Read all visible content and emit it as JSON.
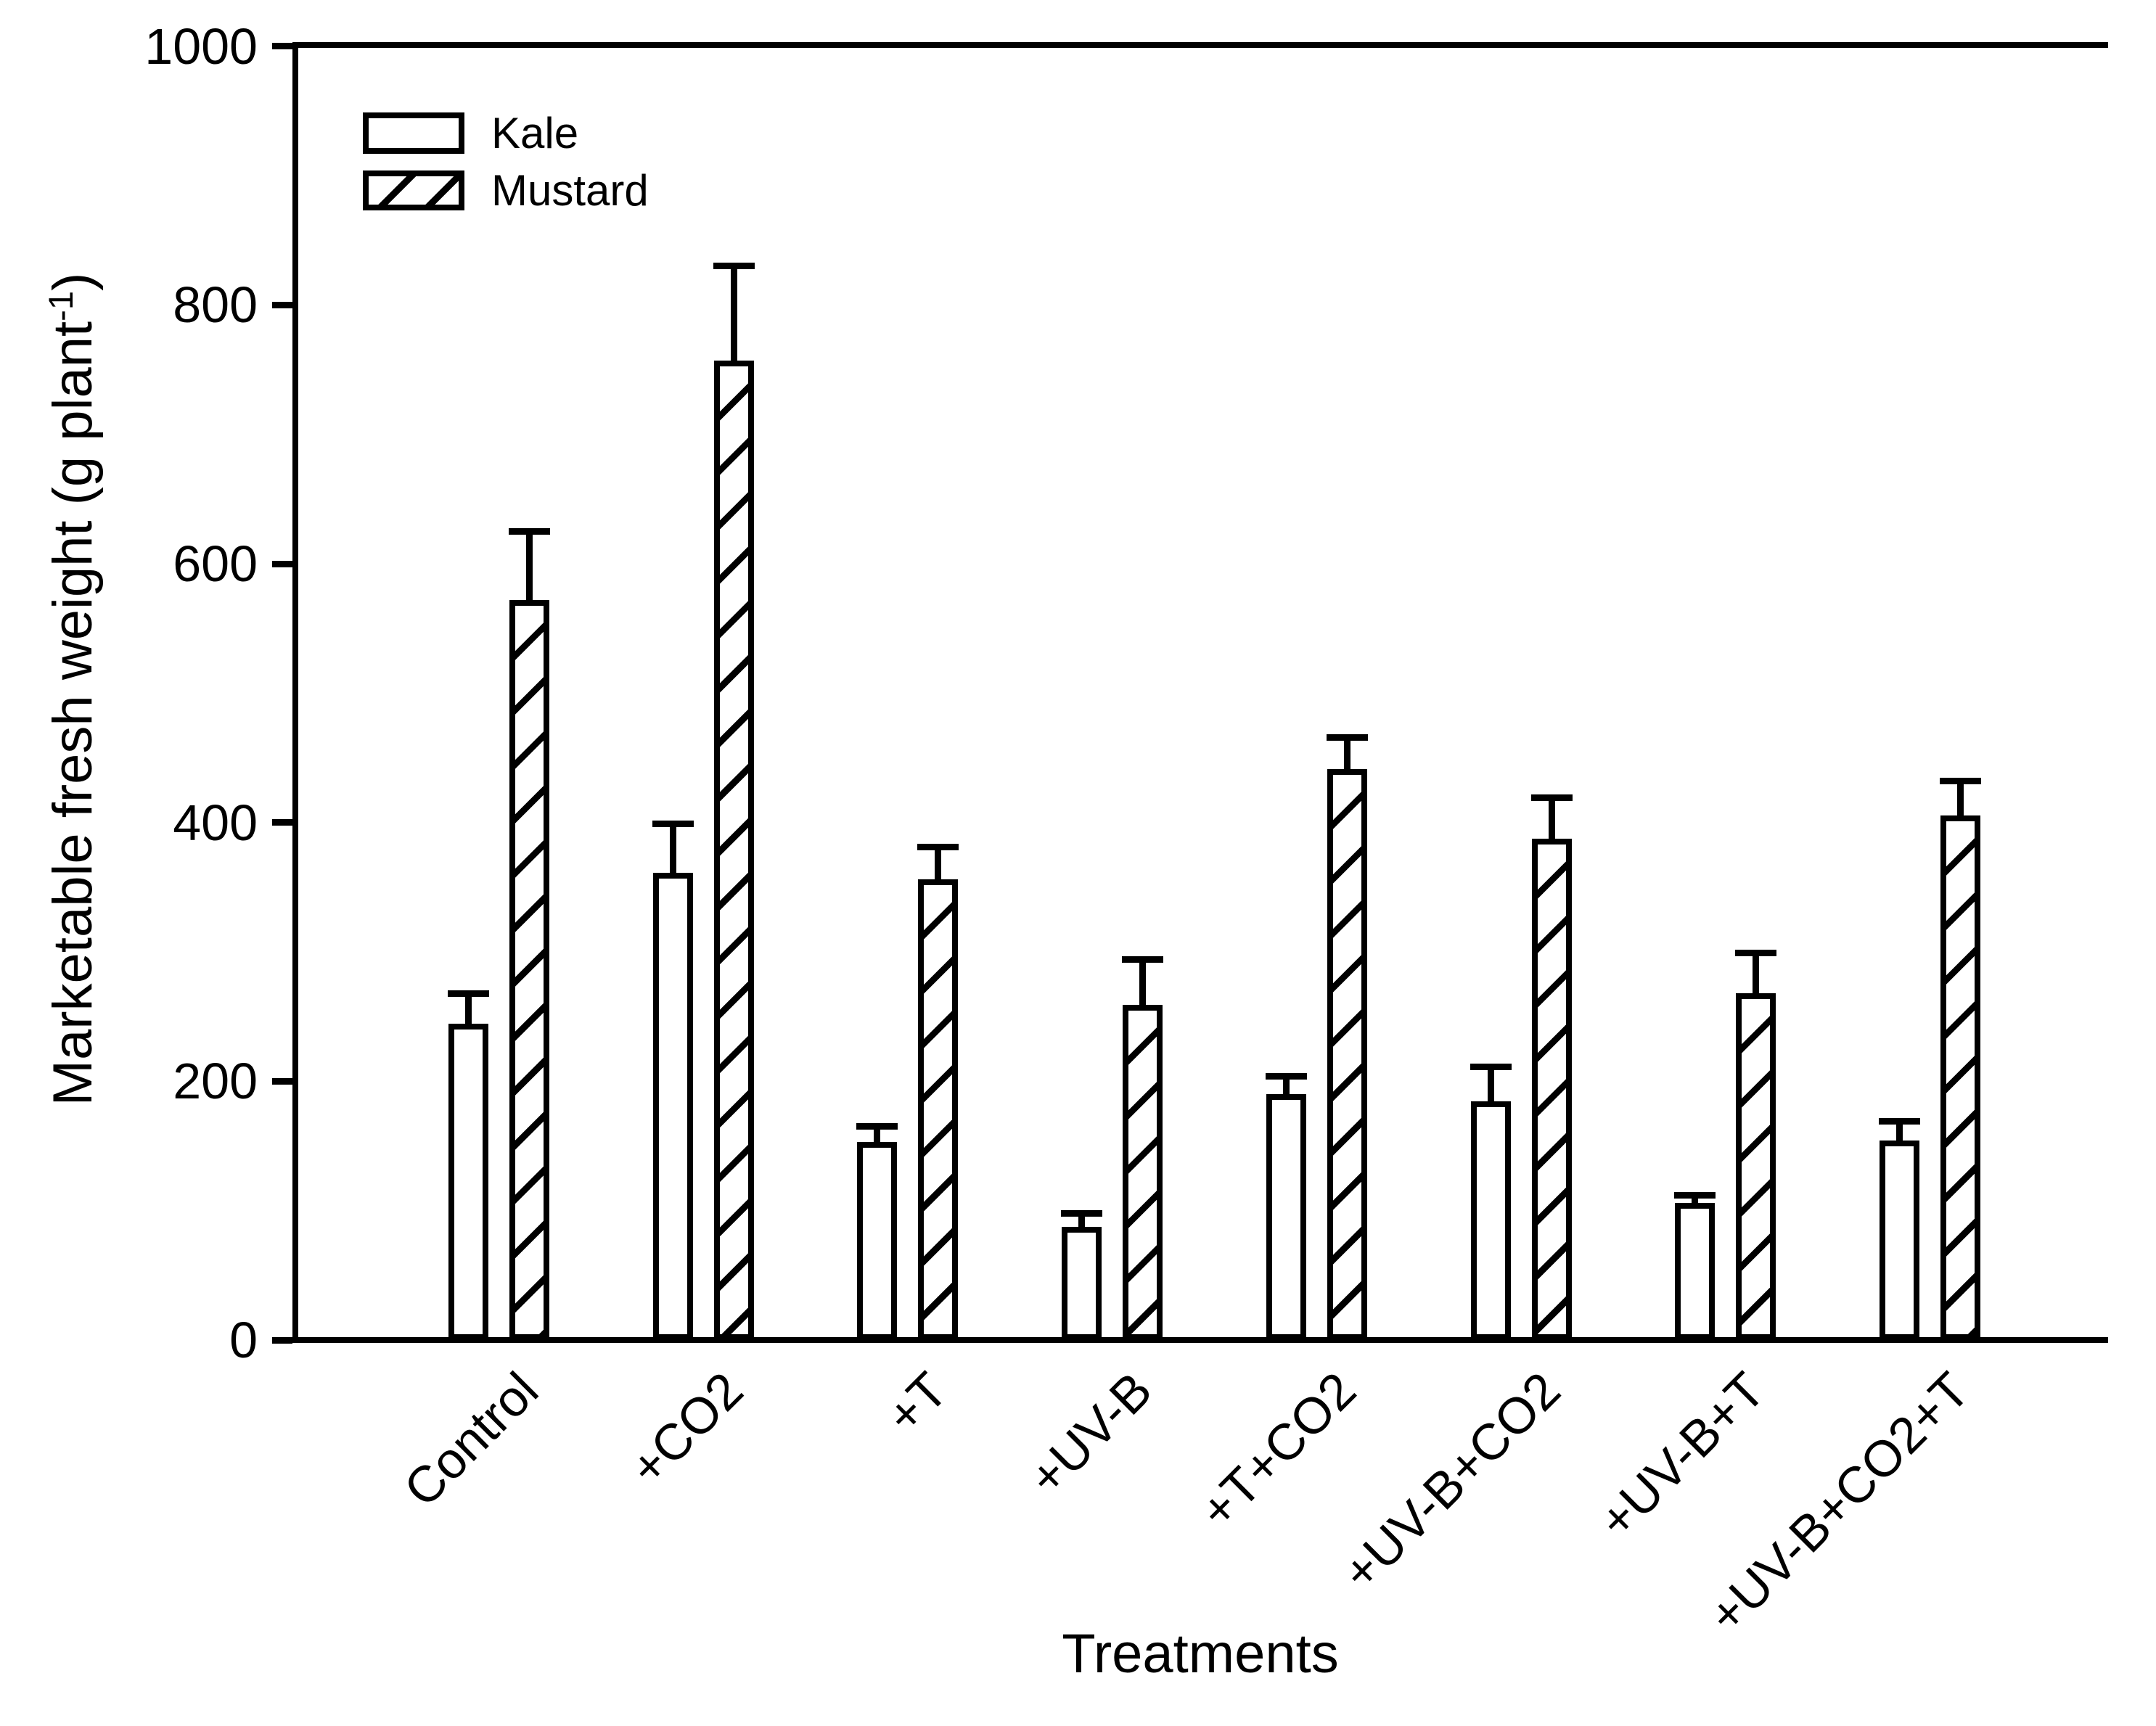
{
  "chart_data": {
    "type": "bar",
    "title": "",
    "xlabel": "Treatments",
    "ylabel": "Marketable fresh weight (g plant⁻¹)",
    "ylabel_parts": {
      "prefix": "Marketable fresh weight (g plant",
      "sup": "-1",
      "suffix": ")"
    },
    "categories": [
      "Control",
      "+CO2",
      "+T",
      "+UV-B",
      "+T+CO2",
      "+UV-B+CO2",
      "+UV-B+T",
      "+UV-B+CO2+T"
    ],
    "series": [
      {
        "name": "Kale",
        "style": "open",
        "values": [
          242,
          359,
          151,
          85,
          188,
          182,
          104,
          152
        ],
        "errors": [
          24,
          38,
          12,
          11,
          14,
          27,
          6,
          15
        ]
      },
      {
        "name": "Mustard",
        "style": "hatched",
        "values": [
          570,
          755,
          354,
          257,
          439,
          385,
          266,
          403
        ],
        "errors": [
          53,
          73,
          25,
          35,
          25,
          32,
          31,
          27
        ]
      }
    ],
    "ylim": [
      0,
      1000
    ],
    "yticks": [
      0,
      200,
      400,
      600,
      800,
      1000
    ],
    "error_bars": "upper-only",
    "grid": false,
    "legend_position": "top-left",
    "bar_fill_color": "#ffffff",
    "line_color": "#000000",
    "background_color": "#ffffff"
  }
}
